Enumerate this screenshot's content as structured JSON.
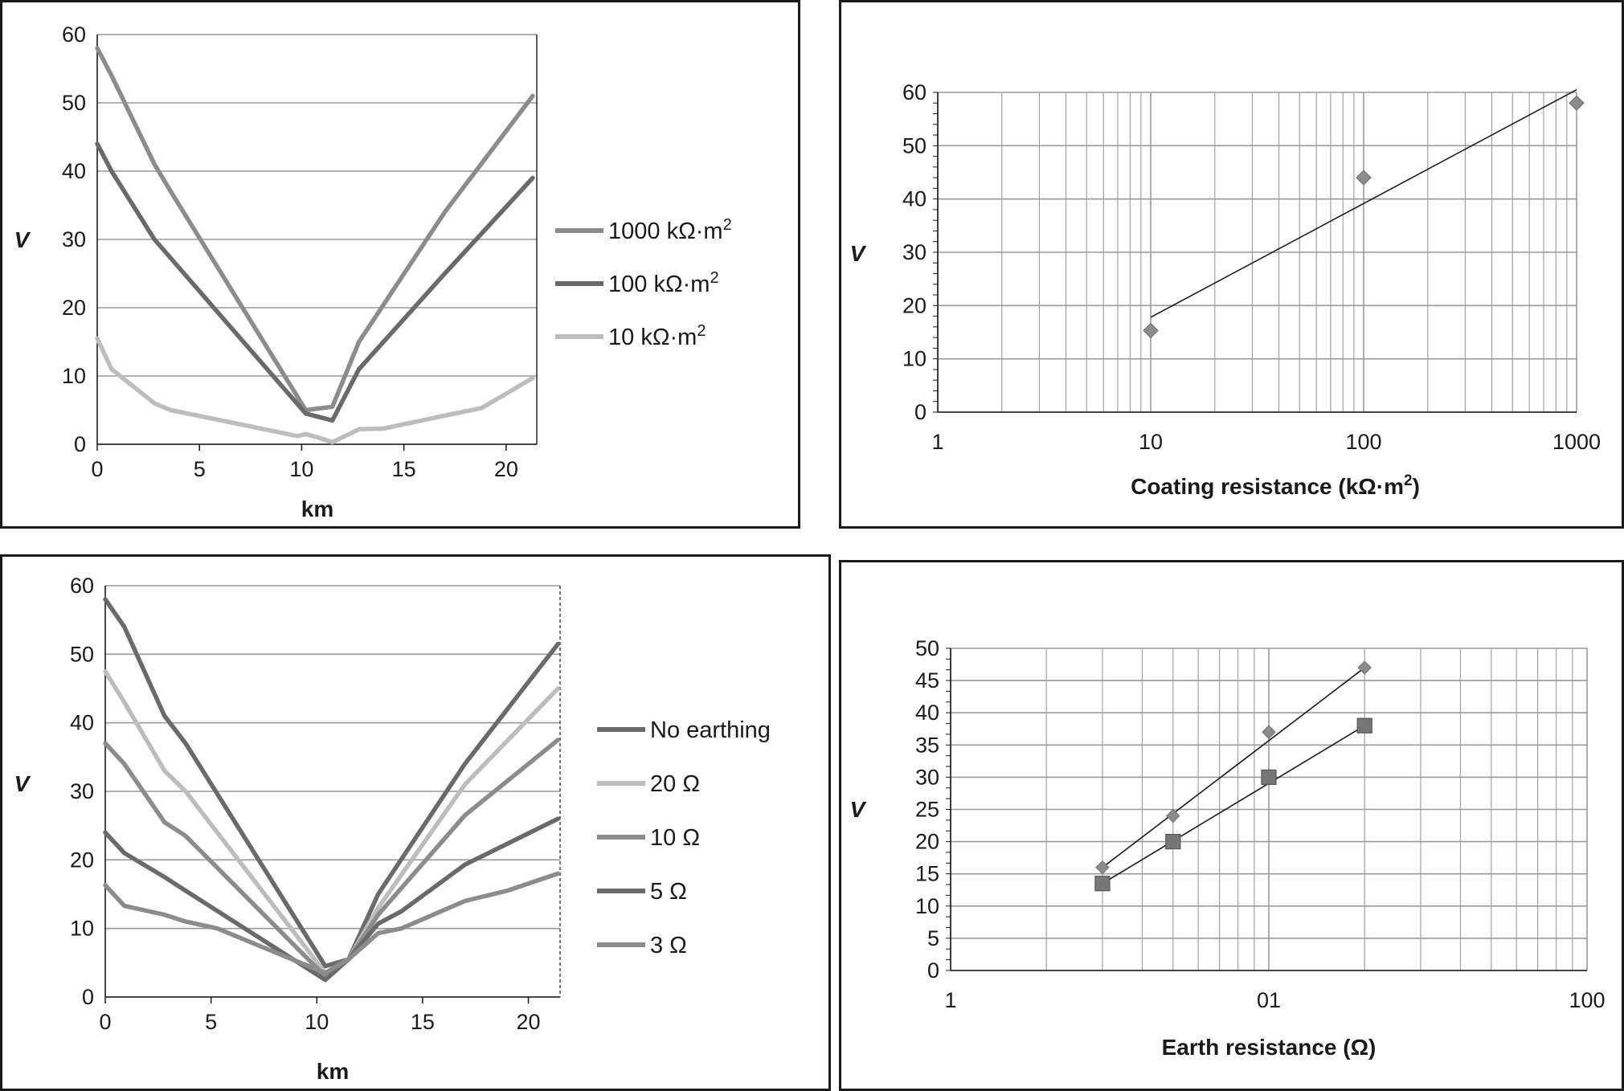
{
  "colors": {
    "series_a": "#8c8c8c",
    "series_b": "#6a6a6a",
    "series_c": "#bdbdbd",
    "marker": "#8c8c8c",
    "marker_dark": "#777777",
    "grid": "#9a9a9a",
    "frame": "#1a1a1a"
  },
  "chart_data": [
    {
      "type": "line",
      "xlabel": "km",
      "ylabel": "V",
      "xlim": [
        0,
        21.5
      ],
      "ylim": [
        0,
        60
      ],
      "xticks": [
        "0",
        "5",
        "10",
        "15",
        "20"
      ],
      "yticks": [
        "0",
        "10",
        "20",
        "30",
        "40",
        "50",
        "60"
      ],
      "legend_position": "right",
      "series": [
        {
          "name": "1000 kΩ·m",
          "sup": "2",
          "color_key": "series_a",
          "x": [
            0,
            0.7,
            2.8,
            3.6,
            10.2,
            11.5,
            12.8,
            17,
            21.3
          ],
          "y": [
            58,
            54,
            41,
            37,
            5,
            5.5,
            15,
            34,
            51
          ]
        },
        {
          "name": "100 kΩ·m",
          "sup": "2",
          "color_key": "series_b",
          "x": [
            0,
            0.7,
            2.8,
            10.2,
            11.5,
            12.8,
            17,
            21.3
          ],
          "y": [
            44,
            40,
            30,
            4.5,
            3.5,
            11,
            25,
            39
          ]
        },
        {
          "name": "10 kΩ·m",
          "sup": "2",
          "color_key": "series_c",
          "x": [
            0,
            0.7,
            2.8,
            3.6,
            9.8,
            10.2,
            10.8,
            11.5,
            12.8,
            14,
            17,
            18.8,
            21.3
          ],
          "y": [
            15.5,
            11,
            6,
            5,
            1.2,
            1.5,
            1,
            0.3,
            2.2,
            2.3,
            4.2,
            5.3,
            9.7
          ]
        }
      ]
    },
    {
      "type": "scatter",
      "xlabel": "Coating resistance (kΩ·m",
      "xlabel_sup": "2",
      "xlabel_end": ")",
      "ylabel": "V",
      "xscale": "log",
      "xlim": [
        1,
        1000
      ],
      "ylim": [
        0,
        60
      ],
      "xticks": [
        "1",
        "10",
        "100",
        "1000"
      ],
      "yticks": [
        "0",
        "10",
        "20",
        "30",
        "40",
        "50",
        "60"
      ],
      "points": {
        "x": [
          10,
          100,
          1000
        ],
        "y": [
          15.3,
          44,
          58
        ]
      },
      "trendline": {
        "x": [
          10,
          1000
        ],
        "y": [
          17.8,
          60.5
        ]
      }
    },
    {
      "type": "line",
      "xlabel": "km",
      "ylabel": "V",
      "xlim": [
        0,
        21.5
      ],
      "ylim": [
        0,
        60
      ],
      "xticks": [
        "0",
        "5",
        "10",
        "15",
        "20"
      ],
      "yticks": [
        "0",
        "10",
        "20",
        "30",
        "40",
        "50",
        "60"
      ],
      "legend_position": "right",
      "series": [
        {
          "name": "No earthing",
          "color_key": "series_b",
          "x": [
            0,
            0.9,
            2.8,
            3.8,
            10.4,
            11.5,
            12.9,
            17,
            21.4
          ],
          "y": [
            58,
            54,
            41,
            37,
            4.5,
            5.5,
            15,
            34,
            51.5
          ]
        },
        {
          "name": "20 Ω",
          "color_key": "series_c",
          "x": [
            0,
            0.9,
            2.8,
            3.8,
            10.4,
            11.5,
            12.9,
            17,
            21.4
          ],
          "y": [
            47.5,
            43,
            33,
            30,
            3.5,
            5.5,
            13,
            31,
            45
          ]
        },
        {
          "name": "10 Ω",
          "color_key": "series_a",
          "x": [
            0,
            0.9,
            2.8,
            3.8,
            10.4,
            11.5,
            12.9,
            17,
            21.4
          ],
          "y": [
            37,
            34,
            25.5,
            23.5,
            3,
            5.5,
            12,
            26.5,
            37.5
          ]
        },
        {
          "name": "5 Ω",
          "color_key": "series_b",
          "x": [
            0,
            0.9,
            2.8,
            3.8,
            10.4,
            11.5,
            12.9,
            14,
            17,
            21.4
          ],
          "y": [
            24,
            21,
            17.5,
            15.5,
            2.5,
            5.5,
            10.7,
            12.5,
            19.3,
            26
          ]
        },
        {
          "name": "3 Ω",
          "color_key": "series_a",
          "x": [
            0,
            0.9,
            2.8,
            3.8,
            5.3,
            10.4,
            11.5,
            12.9,
            14,
            17,
            19,
            21.4
          ],
          "y": [
            16.3,
            13.3,
            12,
            11,
            10,
            3.5,
            5.5,
            9.3,
            10,
            14,
            15.5,
            18
          ]
        }
      ]
    },
    {
      "type": "scatter",
      "xlabel": "Earth resistance (Ω)",
      "ylabel": "V",
      "xscale": "log",
      "xlim": [
        1,
        100
      ],
      "ylim": [
        0,
        50
      ],
      "xticks": [
        "1",
        "01",
        "100"
      ],
      "yticks": [
        "0",
        "5",
        "10",
        "15",
        "20",
        "25",
        "30",
        "35",
        "40",
        "45",
        "50"
      ],
      "series": [
        {
          "marker": "diamond",
          "color_key": "marker",
          "x": [
            3,
            5,
            10,
            20
          ],
          "y": [
            16,
            24,
            37,
            47
          ]
        },
        {
          "marker": "square",
          "color_key": "marker_dark",
          "x": [
            3,
            5,
            10,
            20
          ],
          "y": [
            13.5,
            20,
            30,
            38
          ]
        }
      ],
      "trendlines": [
        {
          "x": [
            3,
            20
          ],
          "y": [
            16,
            47
          ]
        },
        {
          "x": [
            3,
            20
          ],
          "y": [
            13.5,
            38
          ]
        }
      ]
    }
  ]
}
